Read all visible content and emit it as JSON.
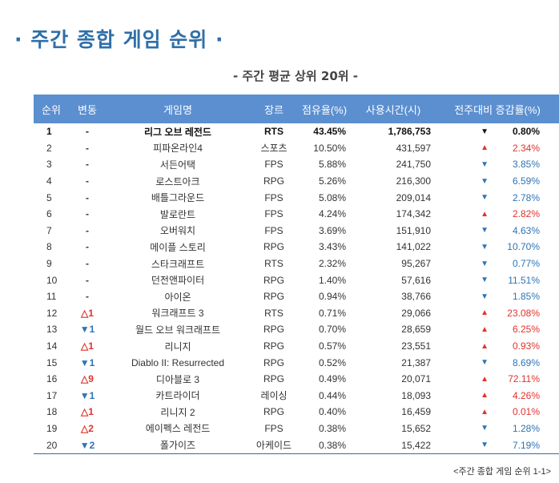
{
  "title": "· 주간 종합 게임 순위 ·",
  "subtitle": "- 주간 평균 상위 20위 -",
  "footer": "<주간 종합 게임 순위 1-1>",
  "colors": {
    "header_bg": "#5b8fd0",
    "title": "#2f6fa8",
    "up": "#e0322d",
    "down": "#2e74b5"
  },
  "table": {
    "headers": [
      "순위",
      "변동",
      "게임명",
      "장르",
      "점유율(%)",
      "사용시간(시)",
      "전주대비 증감률(%)"
    ],
    "rows": [
      {
        "rank": "1",
        "var": "-",
        "var_dir": "neutral",
        "name": "리그 오브 레전드",
        "genre": "RTS",
        "share": "43.45%",
        "time": "1,786,753",
        "arrow": "▼",
        "dir": "down",
        "change": "0.80%"
      },
      {
        "rank": "2",
        "var": "-",
        "var_dir": "neutral",
        "name": "피파온라인4",
        "genre": "스포츠",
        "share": "10.50%",
        "time": "431,597",
        "arrow": "▲",
        "dir": "up",
        "change": "2.34%"
      },
      {
        "rank": "3",
        "var": "-",
        "var_dir": "neutral",
        "name": "서든어택",
        "genre": "FPS",
        "share": "5.88%",
        "time": "241,750",
        "arrow": "▼",
        "dir": "down",
        "change": "3.85%"
      },
      {
        "rank": "4",
        "var": "-",
        "var_dir": "neutral",
        "name": "로스트아크",
        "genre": "RPG",
        "share": "5.26%",
        "time": "216,300",
        "arrow": "▼",
        "dir": "down",
        "change": "6.59%"
      },
      {
        "rank": "5",
        "var": "-",
        "var_dir": "neutral",
        "name": "배틀그라운드",
        "genre": "FPS",
        "share": "5.08%",
        "time": "209,014",
        "arrow": "▼",
        "dir": "down",
        "change": "2.78%"
      },
      {
        "rank": "6",
        "var": "-",
        "var_dir": "neutral",
        "name": "발로란트",
        "genre": "FPS",
        "share": "4.24%",
        "time": "174,342",
        "arrow": "▲",
        "dir": "up",
        "change": "2.82%"
      },
      {
        "rank": "7",
        "var": "-",
        "var_dir": "neutral",
        "name": "오버워치",
        "genre": "FPS",
        "share": "3.69%",
        "time": "151,910",
        "arrow": "▼",
        "dir": "down",
        "change": "4.63%"
      },
      {
        "rank": "8",
        "var": "-",
        "var_dir": "neutral",
        "name": "메이플 스토리",
        "genre": "RPG",
        "share": "3.43%",
        "time": "141,022",
        "arrow": "▼",
        "dir": "down",
        "change": "10.70%"
      },
      {
        "rank": "9",
        "var": "-",
        "var_dir": "neutral",
        "name": "스타크래프트",
        "genre": "RTS",
        "share": "2.32%",
        "time": "95,267",
        "arrow": "▼",
        "dir": "down",
        "change": "0.77%"
      },
      {
        "rank": "10",
        "var": "-",
        "var_dir": "neutral",
        "name": "던전앤파이터",
        "genre": "RPG",
        "share": "1.40%",
        "time": "57,616",
        "arrow": "▼",
        "dir": "down",
        "change": "11.51%"
      },
      {
        "rank": "11",
        "var": "-",
        "var_dir": "neutral",
        "name": "아이온",
        "genre": "RPG",
        "share": "0.94%",
        "time": "38,766",
        "arrow": "▼",
        "dir": "down",
        "change": "1.85%"
      },
      {
        "rank": "12",
        "var": "△1",
        "var_dir": "up",
        "name": "워크래프트 3",
        "genre": "RTS",
        "share": "0.71%",
        "time": "29,066",
        "arrow": "▲",
        "dir": "up",
        "change": "23.08%"
      },
      {
        "rank": "13",
        "var": "▼1",
        "var_dir": "down",
        "name": "월드 오브 워크래프트",
        "genre": "RPG",
        "share": "0.70%",
        "time": "28,659",
        "arrow": "▲",
        "dir": "up",
        "change": "6.25%"
      },
      {
        "rank": "14",
        "var": "△1",
        "var_dir": "up",
        "name": "리니지",
        "genre": "RPG",
        "share": "0.57%",
        "time": "23,551",
        "arrow": "▲",
        "dir": "up",
        "change": "0.93%"
      },
      {
        "rank": "15",
        "var": "▼1",
        "var_dir": "down",
        "name": "Diablo II: Resurrected",
        "genre": "RPG",
        "share": "0.52%",
        "time": "21,387",
        "arrow": "▼",
        "dir": "down",
        "change": "8.69%"
      },
      {
        "rank": "16",
        "var": "△9",
        "var_dir": "up",
        "name": "디아블로 3",
        "genre": "RPG",
        "share": "0.49%",
        "time": "20,071",
        "arrow": "▲",
        "dir": "up",
        "change": "72.11%"
      },
      {
        "rank": "17",
        "var": "▼1",
        "var_dir": "down",
        "name": "카트라이더",
        "genre": "레이싱",
        "share": "0.44%",
        "time": "18,093",
        "arrow": "▲",
        "dir": "up",
        "change": "4.26%"
      },
      {
        "rank": "18",
        "var": "△1",
        "var_dir": "up",
        "name": "리니지 2",
        "genre": "RPG",
        "share": "0.40%",
        "time": "16,459",
        "arrow": "▲",
        "dir": "up",
        "change": "0.01%"
      },
      {
        "rank": "19",
        "var": "△2",
        "var_dir": "up",
        "name": "에이펙스 레전드",
        "genre": "FPS",
        "share": "0.38%",
        "time": "15,652",
        "arrow": "▼",
        "dir": "down",
        "change": "1.28%"
      },
      {
        "rank": "20",
        "var": "▼2",
        "var_dir": "down",
        "name": "폴가이즈",
        "genre": "아케이드",
        "share": "0.38%",
        "time": "15,422",
        "arrow": "▼",
        "dir": "down",
        "change": "7.19%"
      }
    ]
  }
}
